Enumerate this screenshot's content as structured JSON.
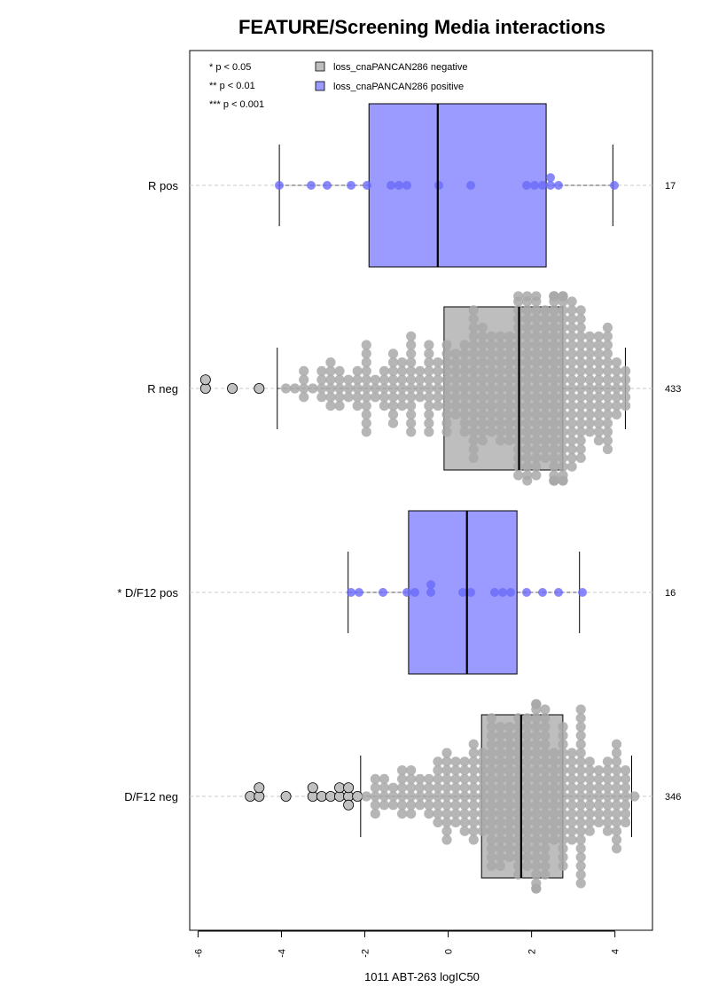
{
  "chart_data": {
    "type": "box",
    "title": "FEATURE/Screening Media interactions",
    "xlabel": "1011 ABT-263 logIC50",
    "xlim": [
      -6.2,
      4.9
    ],
    "xticks": [
      -6,
      -4,
      -2,
      0,
      2,
      4
    ],
    "xtick_labels": [
      "-6",
      "-4",
      "-2",
      "0",
      "2",
      "4"
    ],
    "significance_legend": [
      "* p < 0.05",
      "** p < 0.01",
      "*** p < 0.001"
    ],
    "legend": [
      {
        "label": "loss_cnaPANCAN286 negative",
        "color": "#bebebe"
      },
      {
        "label": "loss_cnaPANCAN286 positive",
        "color": "#9a9aff"
      }
    ],
    "colors": {
      "negative_box": "#bebebe",
      "positive_box": "#9a9aff",
      "negative_points": "#a9a9a9",
      "positive_points": "#6a6afa"
    },
    "groups": [
      {
        "label": "R pos",
        "n": "17",
        "status": "positive",
        "box": {
          "q1": -1.9,
          "median": -0.25,
          "q3": 2.35,
          "whisker_low": -4.05,
          "whisker_high": 3.95
        },
        "points": [
          -4.05,
          -3.35,
          -2.95,
          -2.35,
          -1.9,
          -1.3,
          -1.25,
          -1.0,
          -0.25,
          0.55,
          1.8,
          2.0,
          2.35,
          2.5,
          2.55,
          2.65,
          3.95
        ]
      },
      {
        "label": "R neg",
        "n": "433",
        "status": "negative",
        "box": {
          "q1": -0.1,
          "median": 1.7,
          "q3": 2.75,
          "whisker_low": -4.1,
          "whisker_high": 4.25
        },
        "outliers": [
          -5.8,
          -5.75,
          -5.15,
          -4.5
        ],
        "n_drawn": 433
      },
      {
        "label": "* D/F12 pos",
        "n": "16",
        "status": "positive",
        "box": {
          "q1": -0.95,
          "median": 0.45,
          "q3": 1.65,
          "whisker_low": -2.4,
          "whisker_high": 3.15
        },
        "points": [
          -2.4,
          -2.2,
          -1.6,
          -1.05,
          -0.75,
          -0.4,
          -0.4,
          0.3,
          0.55,
          1.2,
          1.4,
          1.5,
          1.8,
          2.2,
          2.6,
          3.15
        ]
      },
      {
        "label": "D/F12 neg",
        "n": "346",
        "status": "negative",
        "box": {
          "q1": 0.8,
          "median": 1.75,
          "q3": 2.75,
          "whisker_low": -2.1,
          "whisker_high": 4.4
        },
        "outliers": [
          -4.7,
          -4.55,
          -4.5,
          -3.8,
          -3.2,
          -3.15,
          -2.95,
          -2.75,
          -2.65,
          -2.6,
          -2.45,
          -2.4,
          -2.3,
          -2.25
        ],
        "n_drawn": 346
      }
    ]
  }
}
